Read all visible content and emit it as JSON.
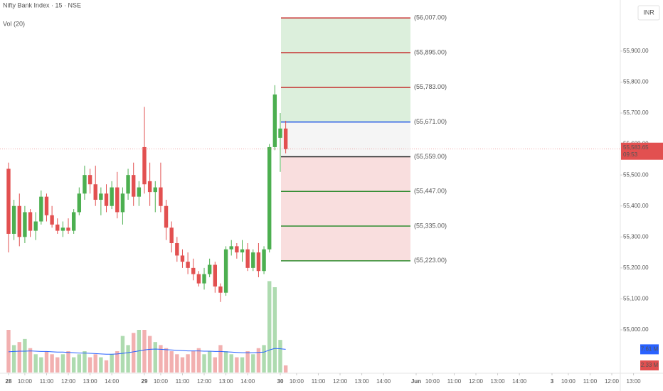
{
  "chart_data": {
    "type": "candlestick",
    "title": "Nifty Bank Index · 15 · NSE",
    "volume_title": "Vol (20)",
    "currency": "INR",
    "xlim": [
      -1.57,
      112.57
    ],
    "xticks": [
      {
        "value": 0,
        "label": "28"
      },
      {
        "value": 3,
        "label": "10:00"
      },
      {
        "value": 7,
        "label": "11:00"
      },
      {
        "value": 11,
        "label": "12:00"
      },
      {
        "value": 15,
        "label": "13:00"
      },
      {
        "value": 19,
        "label": "14:00"
      },
      {
        "value": 25,
        "label": "29"
      },
      {
        "value": 28,
        "label": "10:00"
      },
      {
        "value": 32,
        "label": "11:00"
      },
      {
        "value": 36,
        "label": "12:00"
      },
      {
        "value": 40,
        "label": "13:00"
      },
      {
        "value": 44,
        "label": "14:00"
      },
      {
        "value": 50,
        "label": "30"
      },
      {
        "value": 53,
        "label": "10:00"
      },
      {
        "value": 57,
        "label": "11:00"
      },
      {
        "value": 61,
        "label": "12:00"
      },
      {
        "value": 65,
        "label": "13:00"
      },
      {
        "value": 69,
        "label": "14:00"
      },
      {
        "value": 75,
        "label": "Jun"
      },
      {
        "value": 78,
        "label": "10:00"
      },
      {
        "value": 82,
        "label": "11:00"
      },
      {
        "value": 86,
        "label": "12:00"
      },
      {
        "value": 90,
        "label": "13:00"
      },
      {
        "value": 94,
        "label": "14:00"
      },
      {
        "value": 100,
        "label": "3"
      },
      {
        "value": 103,
        "label": "10:00"
      },
      {
        "value": 107,
        "label": "11:00"
      },
      {
        "value": 111,
        "label": "12:00"
      },
      {
        "value": 115,
        "label": "13:00"
      }
    ],
    "bold_xticks": [
      0,
      6,
      12,
      18,
      24
    ],
    "ylim": [
      54860,
      56065
    ],
    "yticks": [
      {
        "value": 55900,
        "label": "55,900.00"
      },
      {
        "value": 55800,
        "label": "55,800.00"
      },
      {
        "value": 55700,
        "label": "55,700.00"
      },
      {
        "value": 55600,
        "label": "55,600.00"
      },
      {
        "value": 55500,
        "label": "55,500.00"
      },
      {
        "value": 55400,
        "label": "55,400.00"
      },
      {
        "value": 55300,
        "label": "55,300.00"
      },
      {
        "value": 55200,
        "label": "55,200.00"
      },
      {
        "value": 55100,
        "label": "55,100.00"
      },
      {
        "value": 55000,
        "label": "55,000.00"
      }
    ],
    "grid": false,
    "up_color": "#4caf50",
    "down_color": "#e25050",
    "open": [
      55520,
      55310,
      55400,
      55300,
      55380,
      55320,
      55350,
      55430,
      55370,
      55340,
      55320,
      55330,
      55320,
      55380,
      55440,
      55500,
      55470,
      55420,
      55440,
      55400,
      55460,
      55380,
      55440,
      55500,
      55430,
      55590,
      55480,
      55445,
      55460,
      55400,
      55330,
      55280,
      55240,
      55220,
      55200,
      55180,
      55150,
      55180,
      55210,
      55140,
      55120,
      55260,
      55270,
      55250,
      55260,
      55200,
      55250,
      55190,
      55260,
      55590,
      55620,
      55650
    ],
    "high": [
      55540,
      55420,
      55440,
      55400,
      55390,
      55380,
      55450,
      55440,
      55400,
      55360,
      55350,
      55360,
      55390,
      55460,
      55530,
      55520,
      55530,
      55460,
      55470,
      55480,
      55510,
      55460,
      55520,
      55540,
      55480,
      55720,
      55540,
      55480,
      55540,
      55420,
      55350,
      55300,
      55260,
      55250,
      55230,
      55190,
      55200,
      55230,
      55220,
      55150,
      55270,
      55290,
      55280,
      55290,
      55280,
      55260,
      55280,
      55270,
      55600,
      55790,
      55700,
      55675
    ],
    "low": [
      55250,
      55290,
      55270,
      55280,
      55300,
      55290,
      55340,
      55350,
      55330,
      55310,
      55300,
      55310,
      55310,
      55370,
      55420,
      55440,
      55400,
      55370,
      55380,
      55390,
      55360,
      55340,
      55420,
      55400,
      55400,
      55440,
      55400,
      55380,
      55380,
      55290,
      55250,
      55220,
      55200,
      55180,
      55160,
      55140,
      55130,
      55170,
      55120,
      55090,
      55110,
      55240,
      55230,
      55220,
      55190,
      55190,
      55170,
      55180,
      55250,
      55580,
      55510,
      55570
    ],
    "close": [
      55310,
      55400,
      55300,
      55380,
      55320,
      55350,
      55430,
      55370,
      55340,
      55320,
      55330,
      55320,
      55380,
      55440,
      55500,
      55470,
      55420,
      55440,
      55400,
      55460,
      55380,
      55440,
      55500,
      55430,
      55460,
      55470,
      55445,
      55460,
      55400,
      55330,
      55280,
      55240,
      55220,
      55200,
      55180,
      55150,
      55180,
      55210,
      55140,
      55120,
      55260,
      55270,
      55250,
      55260,
      55200,
      55250,
      55190,
      55260,
      55590,
      55760,
      55650,
      55583.65
    ],
    "volume": [
      14,
      9,
      10,
      11,
      8,
      6,
      5,
      7,
      6,
      5,
      6,
      7,
      5,
      6,
      7,
      5,
      6,
      5,
      4,
      6,
      7,
      12,
      9,
      13,
      14,
      14,
      12,
      10,
      9,
      8,
      7,
      6,
      5,
      6,
      7,
      8,
      6,
      7,
      5,
      9,
      7,
      6,
      5,
      5,
      7,
      6,
      8,
      9,
      30,
      28,
      10.7,
      2.33
    ],
    "volume_ma": [
      6.8,
      6.9,
      7.0,
      7.0,
      7.1,
      7.0,
      6.9,
      6.9,
      6.8,
      6.7,
      6.7,
      6.6,
      6.5,
      6.4,
      6.4,
      6.3,
      6.2,
      6.1,
      6.0,
      6.0,
      6.1,
      6.3,
      6.5,
      6.8,
      7.1,
      7.4,
      7.6,
      7.7,
      7.6,
      7.5,
      7.4,
      7.3,
      7.2,
      7.1,
      7.1,
      7.1,
      7.0,
      7.0,
      6.9,
      6.9,
      6.8,
      6.7,
      6.6,
      6.5,
      6.5,
      6.5,
      6.6,
      6.7,
      7.4,
      7.9,
      7.8,
      7.61
    ],
    "volume_ylim": [
      0,
      35
    ],
    "volume_ma_color": "#2962ff",
    "volume_value_labels": {
      "ma": "7.61 M",
      "last": "2.33 M"
    },
    "current_price": {
      "value": 55583.65,
      "label": "55,583.65",
      "countdown": "09:53"
    },
    "levels": [
      {
        "value": 56007,
        "label": "(56,007.00)",
        "color": "#c62828",
        "fill": "#dcefdc"
      },
      {
        "value": 55895,
        "label": "(55,895.00)",
        "color": "#c62828",
        "fill": "#dcefdc"
      },
      {
        "value": 55783,
        "label": "(55,783.00)",
        "color": "#c62828",
        "fill": "#dcefdc"
      },
      {
        "value": 55671,
        "label": "(55,671.00)",
        "color": "#1e53e5",
        "fill": "#f5f5f5"
      },
      {
        "value": 55559,
        "label": "(55,559.00)",
        "color": "#222222",
        "fill": "#f9dede"
      },
      {
        "value": 55447,
        "label": "(55,447.00)",
        "color": "#2e8b2e",
        "fill": "#f9dede"
      },
      {
        "value": 55335,
        "label": "(55,335.00)",
        "color": "#2e8b2e",
        "fill": "#f9dede"
      },
      {
        "value": 55223,
        "label": "(55,223.00)",
        "color": "#2e8b2e",
        "fill": null
      }
    ]
  }
}
